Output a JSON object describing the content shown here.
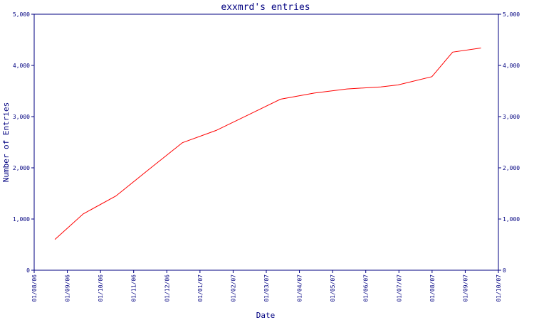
{
  "chart_data": {
    "type": "line",
    "title": "exxmrd's entries",
    "xlabel": "Date",
    "ylabel": "Number of Entries",
    "x_tick_labels": [
      "01/08/06",
      "01/09/06",
      "01/10/06",
      "01/11/06",
      "01/12/06",
      "01/01/07",
      "01/02/07",
      "01/03/07",
      "01/04/07",
      "01/05/07",
      "01/06/07",
      "01/07/07",
      "01/08/07",
      "01/09/07",
      "01/10/07"
    ],
    "y_tick_labels": [
      "0",
      "1,000",
      "2,000",
      "3,000",
      "4,000",
      "5,000"
    ],
    "y_tick_labels_right": [
      "0",
      "1,000",
      "2,000",
      "3,000",
      "4,000",
      "5,000"
    ],
    "ylim": [
      0,
      5000
    ],
    "xlim": [
      "2006-08-01",
      "2007-10-01"
    ],
    "grid": false,
    "series": [
      {
        "color": "#ff0000",
        "x": [
          "2006-08-20",
          "2006-09-15",
          "2006-10-15",
          "2006-11-15",
          "2006-12-15",
          "2007-01-15",
          "2007-02-15",
          "2007-03-15",
          "2007-04-15",
          "2007-05-15",
          "2007-06-15",
          "2007-07-01",
          "2007-08-01",
          "2007-08-20",
          "2007-09-15"
        ],
        "values": [
          600,
          1100,
          1450,
          1980,
          2490,
          2730,
          3050,
          3340,
          3460,
          3540,
          3580,
          3620,
          3780,
          4260,
          4340
        ]
      }
    ]
  }
}
